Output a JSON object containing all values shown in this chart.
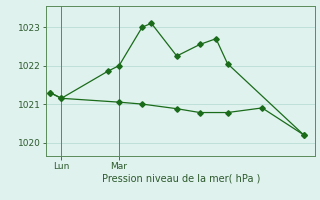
{
  "line1_x": [
    0,
    0.5,
    2.5,
    3.0,
    4.0,
    4.4,
    5.5,
    6.5,
    7.2,
    7.7,
    11.0
  ],
  "line1_y": [
    1021.3,
    1021.15,
    1021.85,
    1022.0,
    1023.0,
    1023.1,
    1022.25,
    1022.55,
    1022.7,
    1022.05,
    1020.2
  ],
  "line2_x": [
    0,
    0.5,
    3.0,
    4.0,
    5.5,
    6.5,
    7.7,
    9.2,
    11.0
  ],
  "line2_y": [
    1021.3,
    1021.15,
    1021.05,
    1021.0,
    1020.88,
    1020.78,
    1020.78,
    1020.9,
    1020.2
  ],
  "line_color": "#1a6b1a",
  "bg_color": "#dff2ee",
  "grid_color": "#b8ddd6",
  "axis_color": "#5a8a5a",
  "tick_color": "#2d5a2d",
  "xlabel": "Pression niveau de la mer( hPa )",
  "yticks": [
    1020,
    1021,
    1022,
    1023
  ],
  "xtick_labels": [
    "Lun",
    "Mar"
  ],
  "xtick_positions": [
    0.5,
    3.0
  ],
  "vline_positions": [
    0.5,
    3.0
  ],
  "ylim": [
    1019.65,
    1023.55
  ],
  "xlim": [
    -0.15,
    11.5
  ]
}
